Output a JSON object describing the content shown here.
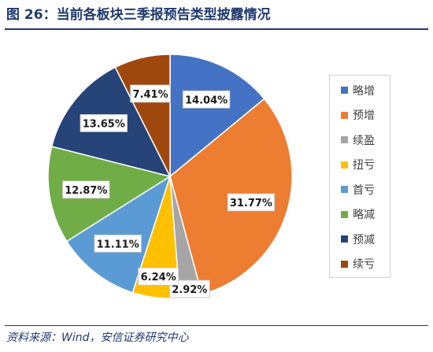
{
  "figure": {
    "title": "图 26：当前各板块三季报预告类型披露情况",
    "source": "资料来源：Wind，安信证券研究中心"
  },
  "chart_data": {
    "type": "pie",
    "title": "",
    "start_angle_deg": 0,
    "direction": "clockwise",
    "slices": [
      {
        "name": "略增",
        "value": 14.04,
        "label": "14.04%",
        "color": "#4472c4"
      },
      {
        "name": "预增",
        "value": 31.77,
        "label": "31.77%",
        "color": "#ed7d31"
      },
      {
        "name": "续盈",
        "value": 2.92,
        "label": "2.92%",
        "color": "#a5a5a5"
      },
      {
        "name": "扭亏",
        "value": 6.24,
        "label": "6.24%",
        "color": "#ffc000"
      },
      {
        "name": "首亏",
        "value": 11.11,
        "label": "11.11%",
        "color": "#5b9bd5"
      },
      {
        "name": "略减",
        "value": 12.87,
        "label": "12.87%",
        "color": "#70ad47"
      },
      {
        "name": "预减",
        "value": 13.65,
        "label": "13.65%",
        "color": "#264478"
      },
      {
        "name": "续亏",
        "value": 7.41,
        "label": "7.41%",
        "color": "#9e480e"
      }
    ],
    "legend_position": "right"
  }
}
